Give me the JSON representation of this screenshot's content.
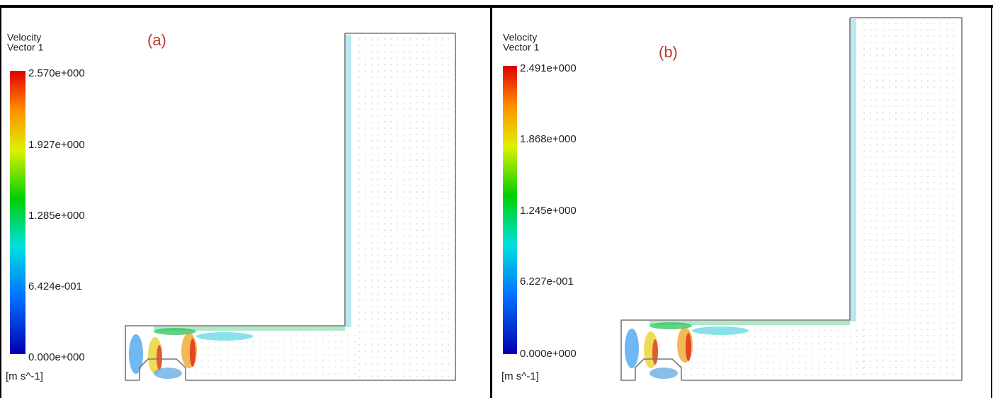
{
  "panels": [
    {
      "label": "(a)",
      "legend_title": "Velocity",
      "legend_subtitle": "Vector 1",
      "ticks": [
        "2.570e+000",
        "1.927e+000",
        "1.285e+000",
        "6.424e-001",
        "0.000e+000"
      ],
      "unit": "[m s^-1]"
    },
    {
      "label": "(b)",
      "legend_title": "Velocity",
      "legend_subtitle": "Vector 1",
      "ticks": [
        "2.491e+000",
        "1.868e+000",
        "1.245e+000",
        "6.227e-001",
        "0.000e+000"
      ],
      "unit": "[m s^-1]"
    }
  ]
}
